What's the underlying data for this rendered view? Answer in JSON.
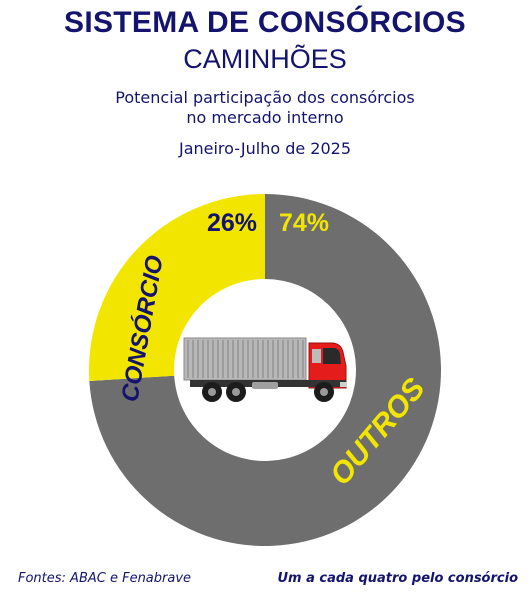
{
  "header": {
    "title": "SISTEMA DE CONSÓRCIOS",
    "subtitle": "CAMINHÕES",
    "description_line1": "Potencial participação dos consórcios",
    "description_line2": "no mercado interno",
    "period": "Janeiro-Julho de 2025"
  },
  "chart_data": {
    "type": "pie",
    "style": "donut",
    "categories": [
      "CONSÓRCIO",
      "OUTROS"
    ],
    "values": [
      26,
      74
    ],
    "value_labels": [
      "26%",
      "74%"
    ],
    "colors": [
      "#f2e600",
      "#6e6e6e"
    ],
    "label_colors": [
      "#14146e",
      "#f2e600"
    ],
    "center_icon": "truck-icon"
  },
  "footer": {
    "source": "Fontes: ABAC e Fenabrave",
    "note": "Um a cada quatro pelo consórcio"
  }
}
